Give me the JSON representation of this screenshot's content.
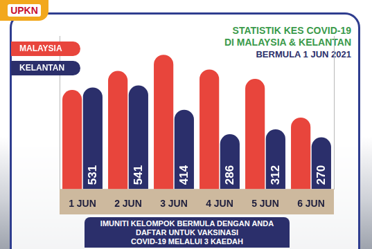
{
  "chart_data": {
    "type": "bar",
    "title": [
      "STATISTIK KES COVID-19",
      "DI MALAYSIA & KELANTAN"
    ],
    "subtitle": "BERMULA 1 JUN 2021",
    "categories": [
      "1 JUN",
      "2 JUN",
      "3 JUN",
      "4 JUN",
      "5 JUN",
      "6 JUN"
    ],
    "series": [
      {
        "name": "MALAYSIA",
        "color": "#e8453c",
        "values": [
          7105,
          7703,
          8209,
          7748,
          7452,
          6241
        ]
      },
      {
        "name": "KELANTAN",
        "color": "#2b2f6b",
        "values": [
          531,
          541,
          414,
          286,
          312,
          270
        ],
        "axis": "y2"
      }
    ],
    "ylim": [
      4000,
      8800
    ],
    "y2lim": [
      0,
      800
    ],
    "grid": false,
    "legend": "top-left",
    "data_labels": true,
    "tick_labels": "x",
    "annotations": {
      "logo": "UPKN",
      "footer": [
        "IMUNITI KELOMPOK BERMULA DENGAN ANDA",
        "DAFTAR UNTUK VAKSINASI",
        "COVID-19 MELALUI 3 KAEDAH"
      ]
    }
  }
}
